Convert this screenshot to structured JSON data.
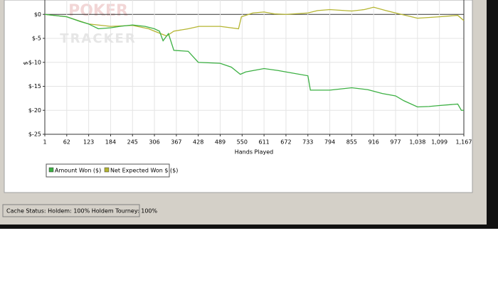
{
  "chart_data": {
    "type": "line",
    "watermark": [
      "POKER",
      "TRACKER"
    ],
    "xlabel": "Hands Played",
    "ylabel": "$",
    "xlim": [
      1,
      1167
    ],
    "ylim": [
      -25,
      3
    ],
    "xticks": [
      1,
      62,
      123,
      184,
      245,
      306,
      367,
      428,
      489,
      550,
      611,
      672,
      733,
      794,
      855,
      916,
      977,
      {
        "value": 1038,
        "label": "1,038"
      },
      {
        "value": 1099,
        "label": "1,099"
      },
      {
        "value": 1167,
        "label": "1,167"
      }
    ],
    "yticks": [
      {
        "value": 0,
        "label": "$0"
      },
      {
        "value": -5,
        "label": "$-5"
      },
      {
        "value": -10,
        "label": "$-10"
      },
      {
        "value": -15,
        "label": "$-15"
      },
      {
        "value": -20,
        "label": "$-20"
      },
      {
        "value": -25,
        "label": "$-25"
      }
    ],
    "grid": true,
    "series": [
      {
        "name": "Amount Won ($)",
        "color": "#3cb043",
        "x": [
          1,
          62,
          100,
          123,
          150,
          184,
          210,
          245,
          280,
          306,
          320,
          330,
          345,
          360,
          400,
          428,
          489,
          520,
          545,
          560,
          611,
          650,
          672,
          733,
          740,
          794,
          855,
          900,
          940,
          977,
          1000,
          1038,
          1070,
          1099,
          1150,
          1160,
          1167
        ],
        "values": [
          0,
          -0.5,
          -1.5,
          -2,
          -3,
          -2.8,
          -2.5,
          -2.2,
          -2.5,
          -3,
          -3.5,
          -5.5,
          -4,
          -7.5,
          -7.7,
          -10,
          -10.2,
          -11,
          -12.5,
          -12,
          -11.3,
          -11.7,
          -12,
          -12.8,
          -15.8,
          -15.8,
          -15.3,
          -15.7,
          -16.5,
          -17,
          -18,
          -19.3,
          -19.2,
          -19,
          -18.7,
          -20,
          -20
        ]
      },
      {
        "name": "Net Expected Won $ ($)",
        "color": "#b5b531",
        "x": [
          1,
          62,
          123,
          184,
          245,
          290,
          306,
          340,
          360,
          400,
          430,
          489,
          540,
          548,
          580,
          611,
          640,
          672,
          733,
          760,
          794,
          855,
          890,
          916,
          950,
          977,
          1038,
          1099,
          1150,
          1167
        ],
        "values": [
          0,
          -0.5,
          -2,
          -2.5,
          -2.3,
          -3,
          -3.5,
          -4.5,
          -3.5,
          -3,
          -2.5,
          -2.5,
          -3,
          -0.5,
          0.3,
          0.5,
          0.1,
          0,
          0.3,
          0.8,
          1,
          0.7,
          1,
          1.5,
          0.8,
          0.3,
          -0.8,
          -0.5,
          -0.2,
          -1.3
        ]
      }
    ]
  },
  "status_bar": {
    "text": "Cache Status: Holdem: 100%   Holdem Tourney: 100%"
  }
}
